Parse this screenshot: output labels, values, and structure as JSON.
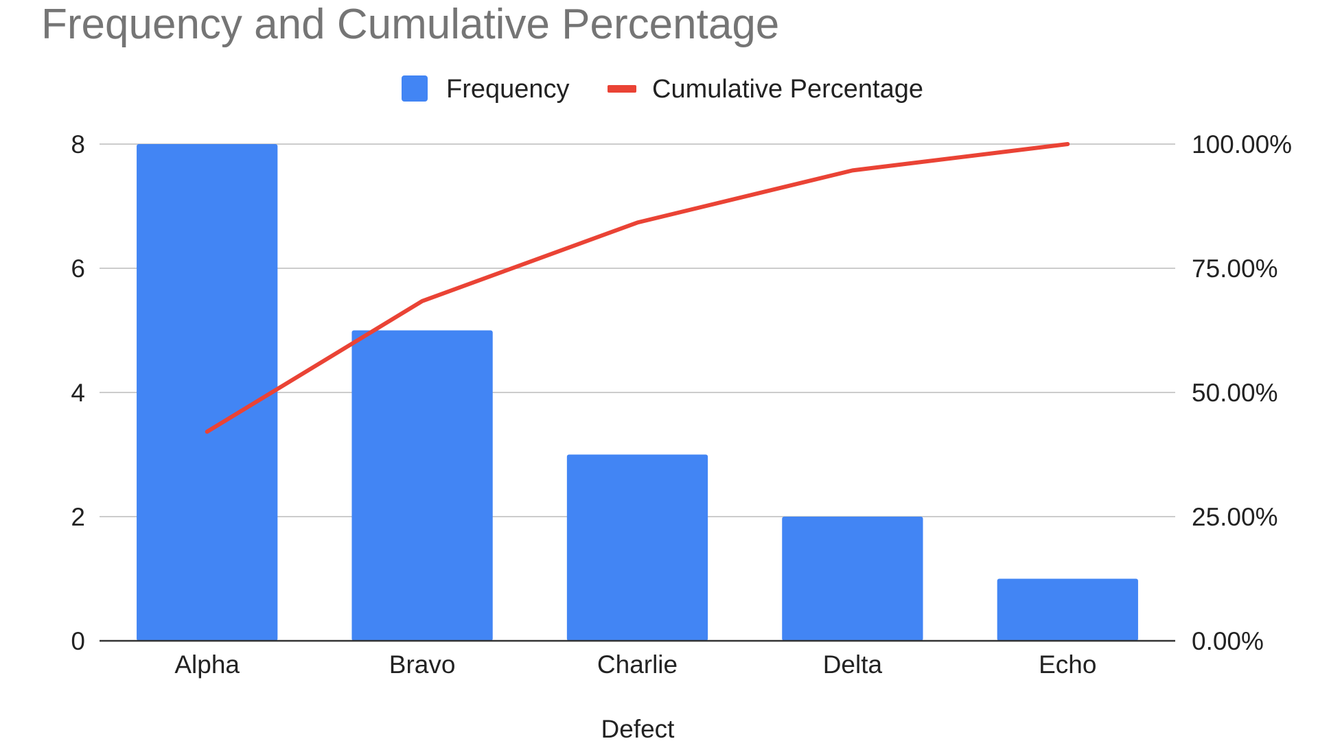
{
  "chart_data": {
    "type": "bar",
    "title": "Frequency and Cumulative Percentage",
    "xlabel": "Defect",
    "ylabel": "",
    "y2label": "",
    "categories": [
      "Alpha",
      "Bravo",
      "Charlie",
      "Delta",
      "Echo"
    ],
    "ylim": [
      0,
      8
    ],
    "y2lim": [
      0,
      100
    ],
    "yticks": [
      "0",
      "2",
      "4",
      "6",
      "8"
    ],
    "y2ticks": [
      "0.00%",
      "25.00%",
      "50.00%",
      "75.00%",
      "100.00%"
    ],
    "grid": true,
    "legend_position": "top",
    "series": [
      {
        "name": "Frequency",
        "type": "bar",
        "axis": "left",
        "color": "#4285f4",
        "values": [
          8,
          5,
          3,
          2,
          1
        ]
      },
      {
        "name": "Cumulative Percentage",
        "type": "line",
        "axis": "right",
        "color": "#ea4335",
        "values": [
          42.1,
          68.4,
          84.2,
          94.7,
          100
        ]
      }
    ]
  }
}
